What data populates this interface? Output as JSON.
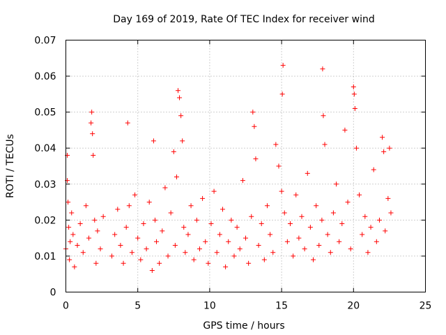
{
  "chart_data": {
    "type": "scatter",
    "title": "Day 169 of 2019, Rate Of TEC Index for receiver wind",
    "xlabel": "GPS time / hours",
    "ylabel": "ROTI / TECUs",
    "xlim": [
      0,
      25
    ],
    "ylim": [
      0,
      0.07
    ],
    "xticks": [
      0,
      5,
      10,
      15,
      20,
      25
    ],
    "xtick_labels": [
      "0",
      "5",
      "10",
      "15",
      "20",
      "25"
    ],
    "yticks": [
      0,
      0.01,
      0.02,
      0.03,
      0.04,
      0.05,
      0.06,
      0.07
    ],
    "ytick_labels": [
      "0",
      "0.01",
      "0.02",
      "0.03",
      "0.04",
      "0.05",
      "0.06",
      "0.07"
    ],
    "grid": true,
    "marker": "+",
    "marker_color": "#ff0000",
    "series": [
      {
        "name": "ROTI",
        "x": [
          0.0,
          0.1,
          0.1,
          0.15,
          0.2,
          0.25,
          0.3,
          0.4,
          0.5,
          0.6,
          0.8,
          1.0,
          1.2,
          1.4,
          1.6,
          1.75,
          1.8,
          1.85,
          1.9,
          2.0,
          2.1,
          2.2,
          2.4,
          2.6,
          3.2,
          3.4,
          3.6,
          3.8,
          4.0,
          4.2,
          4.3,
          4.4,
          4.6,
          4.8,
          5.0,
          5.2,
          5.4,
          5.6,
          5.8,
          6.0,
          6.1,
          6.2,
          6.3,
          6.5,
          6.7,
          6.9,
          7.1,
          7.3,
          7.5,
          7.6,
          7.7,
          7.8,
          7.9,
          8.0,
          8.1,
          8.2,
          8.3,
          8.5,
          8.7,
          8.9,
          9.1,
          9.3,
          9.5,
          9.7,
          9.9,
          10.1,
          10.3,
          10.5,
          10.7,
          10.9,
          11.1,
          11.3,
          11.5,
          11.7,
          11.9,
          12.1,
          12.3,
          12.5,
          12.7,
          12.9,
          13.0,
          13.1,
          13.2,
          13.4,
          13.6,
          13.8,
          14.0,
          14.2,
          14.4,
          14.6,
          14.8,
          15.0,
          15.05,
          15.1,
          15.2,
          15.4,
          15.6,
          15.8,
          16.0,
          16.2,
          16.4,
          16.6,
          16.8,
          17.0,
          17.2,
          17.4,
          17.6,
          17.8,
          17.85,
          17.9,
          18.0,
          18.2,
          18.4,
          18.6,
          18.8,
          19.0,
          19.2,
          19.4,
          19.6,
          19.8,
          20.0,
          20.05,
          20.1,
          20.2,
          20.4,
          20.6,
          20.8,
          21.0,
          21.2,
          21.4,
          21.6,
          21.8,
          22.0,
          22.1,
          22.2,
          22.4,
          22.5,
          22.6
        ],
        "y": [
          0.012,
          0.038,
          0.031,
          0.025,
          0.018,
          0.009,
          0.014,
          0.022,
          0.016,
          0.007,
          0.013,
          0.019,
          0.011,
          0.024,
          0.015,
          0.047,
          0.05,
          0.044,
          0.038,
          0.02,
          0.008,
          0.017,
          0.012,
          0.021,
          0.01,
          0.016,
          0.023,
          0.013,
          0.008,
          0.018,
          0.047,
          0.024,
          0.011,
          0.027,
          0.015,
          0.009,
          0.019,
          0.012,
          0.025,
          0.006,
          0.042,
          0.02,
          0.014,
          0.008,
          0.017,
          0.029,
          0.01,
          0.022,
          0.039,
          0.013,
          0.032,
          0.056,
          0.054,
          0.049,
          0.042,
          0.018,
          0.011,
          0.016,
          0.024,
          0.009,
          0.02,
          0.012,
          0.026,
          0.014,
          0.008,
          0.019,
          0.028,
          0.011,
          0.016,
          0.023,
          0.007,
          0.014,
          0.02,
          0.01,
          0.018,
          0.012,
          0.031,
          0.015,
          0.008,
          0.021,
          0.05,
          0.046,
          0.037,
          0.013,
          0.019,
          0.009,
          0.024,
          0.016,
          0.011,
          0.041,
          0.035,
          0.028,
          0.055,
          0.063,
          0.022,
          0.014,
          0.019,
          0.01,
          0.027,
          0.015,
          0.021,
          0.012,
          0.033,
          0.018,
          0.009,
          0.024,
          0.013,
          0.02,
          0.062,
          0.049,
          0.041,
          0.016,
          0.011,
          0.022,
          0.03,
          0.014,
          0.019,
          0.045,
          0.025,
          0.012,
          0.057,
          0.055,
          0.051,
          0.04,
          0.027,
          0.016,
          0.021,
          0.011,
          0.018,
          0.034,
          0.014,
          0.02,
          0.043,
          0.039,
          0.017,
          0.026,
          0.04,
          0.022
        ]
      }
    ]
  }
}
